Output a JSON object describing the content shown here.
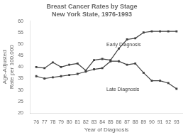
{
  "chart_data": {
    "type": "line",
    "title": "Breast Cancer Rates by Stage\nNew York State, 1976-1993",
    "xlabel": "Year of Diagnosis",
    "ylabel": "Age-Adjusted\nRate per 100,000",
    "x": [
      76,
      77,
      78,
      79,
      80,
      81,
      82,
      83,
      84,
      85,
      86,
      87,
      88,
      89,
      90,
      91,
      92,
      93
    ],
    "series": [
      {
        "color": "#404040",
        "marker": "square",
        "line_style": "solid",
        "values": [
          40.0,
          39.5,
          42.0,
          40.0,
          41.0,
          41.5,
          38.5,
          43.0,
          43.5,
          43.0,
          48.0,
          52.0,
          52.5,
          55.0,
          55.5,
          55.5,
          55.5,
          55.5
        ]
      },
      {
        "color": "#404040",
        "marker": "square",
        "line_style": "solid",
        "values": [
          36.0,
          35.0,
          35.5,
          36.0,
          36.5,
          37.0,
          38.0,
          39.0,
          39.5,
          42.5,
          42.5,
          41.0,
          41.5,
          37.5,
          34.0,
          34.0,
          33.0,
          30.5
        ]
      }
    ],
    "annotations": [
      {
        "text": "Early Diagnosis",
        "x": 84.5,
        "y": 49.0,
        "color": "#404040"
      },
      {
        "text": "Late Diagnosis",
        "x": 84.5,
        "y": 29.5,
        "color": "#404040"
      }
    ],
    "xlim": [
      75.3,
      93.7
    ],
    "xticks": [
      76,
      77,
      78,
      79,
      80,
      81,
      82,
      83,
      84,
      85,
      86,
      87,
      88,
      89,
      90,
      91,
      92,
      93
    ],
    "ylim": [
      20,
      60
    ],
    "yticks": [
      20,
      25,
      30,
      35,
      40,
      45,
      50,
      55,
      60
    ],
    "grid": false
  }
}
